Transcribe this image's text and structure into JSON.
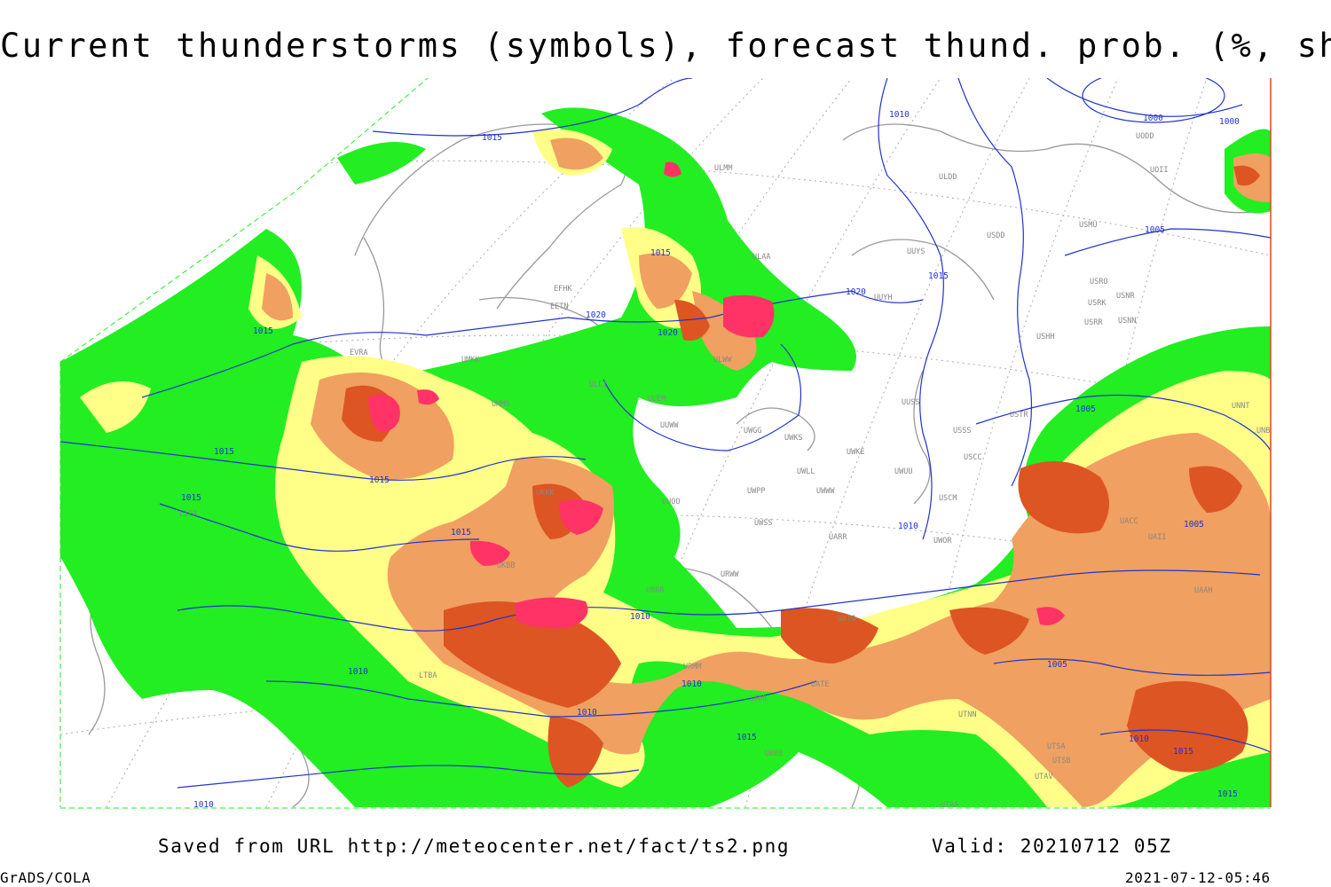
{
  "title": "Current thunderstorms (symbols), forecast thund. prob. (%, shaded)",
  "footer": {
    "saved_from": "Saved from URL http://meteocenter.net/fact/ts2.png",
    "valid": "Valid: 20210712 05Z",
    "software": "GrADS/COLA",
    "generated": "2021-07-12-05:46"
  },
  "colors": {
    "prob_low": "#22ee22",
    "prob_mid": "#ffff88",
    "prob_high": "#f0a060",
    "prob_very_high": "#dd5522",
    "thunderstorm_symbols": "#ff3366",
    "isobars": "#2233cc",
    "coastlines": "#999999",
    "frame": "#dd4422"
  },
  "isobar_labels": [
    "1015",
    "1015",
    "1010",
    "1000",
    "1000",
    "1005",
    "1015",
    "1020",
    "1020",
    "1020",
    "1015",
    "1015",
    "1015",
    "1015",
    "1015",
    "1010",
    "1005",
    "1005",
    "1010",
    "1010",
    "1010",
    "1015",
    "1010",
    "1005",
    "1015",
    "1015",
    "1010",
    "1010"
  ],
  "station_labels": [
    "ULMM",
    "ULDD",
    "UUYS",
    "USDD",
    "USMU",
    "UODD",
    "UOII",
    "ULAA",
    "UUYH",
    "EFHK",
    "EETN",
    "USRO",
    "USRK",
    "USNR",
    "USRR",
    "USNN",
    "USHH",
    "UUEM",
    "ULWW",
    "UUWW",
    "UWGG",
    "UWKS",
    "UUSS",
    "USTR",
    "USSS",
    "USCC",
    "UWKE",
    "UWUU",
    "UWLL",
    "UWWW",
    "UWPP",
    "UUOO",
    "USCM",
    "UWSS",
    "UARR",
    "UWOR",
    "URWW",
    "UNNT",
    "UNBB",
    "URMM",
    "URML",
    "UATE",
    "UTNN",
    "UBBB",
    "UTSA",
    "UTSB",
    "UTAV",
    "UTAA",
    "UAAH",
    "UACC",
    "UAII",
    "UATG",
    "LIPA",
    "LTBA",
    "URRR",
    "UKKK",
    "UKBB",
    "UMMS",
    "UMKK",
    "ULLI",
    "EVRA"
  ]
}
